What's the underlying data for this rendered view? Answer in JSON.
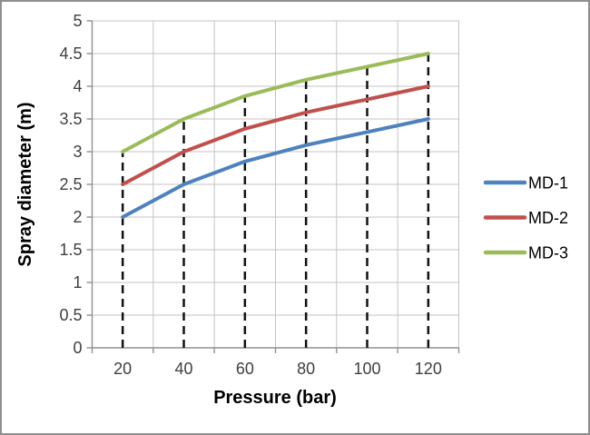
{
  "chart_data": {
    "type": "line",
    "title": "",
    "xlabel": "Pressure (bar)",
    "ylabel": "Spray diameter (m)",
    "categories": [
      "20",
      "40",
      "60",
      "80",
      "100",
      "120"
    ],
    "series": [
      {
        "name": "MD-1",
        "color": "#4F81BD",
        "values": [
          2,
          2.5,
          2.85,
          3.1,
          3.3,
          3.5
        ]
      },
      {
        "name": "MD-2",
        "color": "#C0504D",
        "values": [
          2.5,
          3,
          3.35,
          3.6,
          3.8,
          4
        ]
      },
      {
        "name": "MD-3",
        "color": "#9BBB59",
        "values": [
          3,
          3.5,
          3.85,
          4.1,
          4.3,
          4.5
        ]
      }
    ],
    "ylim": [
      0,
      5
    ],
    "y_step": 0.5,
    "y_tick_labels": [
      "0",
      "0.5",
      "1",
      "1.5",
      "2",
      "2.5",
      "3",
      "3.5",
      "4",
      "4.5",
      "5"
    ],
    "grid": true,
    "legend_position": "right",
    "droplines": "black dashed vertical lines from x-axis up to MD-3 curve at each category"
  },
  "style": {
    "background": "#FFFFFF",
    "outer_border_color": "#8F8F8F",
    "grid_color": "#C3C3C3",
    "axis_color": "#919191",
    "tick_label_color": "#3F3F3F",
    "axis_title_color": "#000000",
    "dropline_color": "#111111"
  }
}
